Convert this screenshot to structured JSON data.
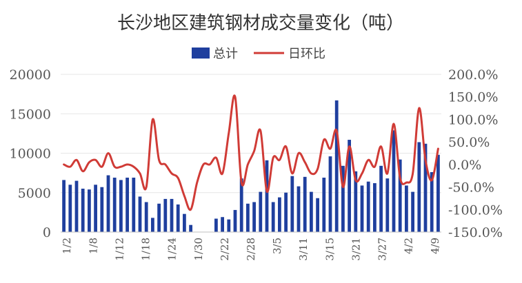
{
  "chart_data": {
    "type": "bar",
    "title": "长沙地区建筑钢材成交量变化（吨）",
    "legend": {
      "position": "top-center"
    },
    "colors": {
      "bar": "#1f3f9e",
      "line": "#d03b36",
      "line_highlight": "#e07a2e"
    },
    "grid": true,
    "xtick_labels": [
      "1/2",
      "1/8",
      "1/12",
      "1/18",
      "1/24",
      "1/30",
      "2/22",
      "2/28",
      "3/5",
      "3/11",
      "3/15",
      "3/21",
      "3/27",
      "4/2",
      "4/9"
    ],
    "y_left": {
      "ticks": [
        "0",
        "5000",
        "10000",
        "15000",
        "20000"
      ],
      "ylim": [
        0,
        20000
      ]
    },
    "y_right": {
      "ticks": [
        "-150.0%",
        "-100.0%",
        "-50.0%",
        "0.0%",
        "50.0%",
        "100.0%",
        "150.0%",
        "200.0%"
      ],
      "ylim": [
        -150,
        200
      ]
    },
    "series": [
      {
        "name": "总计",
        "type": "bar",
        "axis": "left",
        "values": [
          6600,
          6000,
          6500,
          5500,
          5400,
          6000,
          5700,
          7200,
          6900,
          6600,
          6900,
          6900,
          4500,
          3800,
          1800,
          3600,
          4200,
          4200,
          3500,
          2300,
          900,
          0,
          0,
          0,
          1700,
          1900,
          1600,
          2800,
          6800,
          3600,
          3800,
          5100,
          9100,
          3800,
          4400,
          5000,
          7100,
          5800,
          7000,
          5100,
          4300,
          6900,
          9600,
          16700,
          8400,
          11700,
          7700,
          5900,
          6400,
          6200,
          8400,
          6800,
          12900,
          9200,
          5900,
          5100,
          11400,
          11200,
          7600,
          9800
        ]
      },
      {
        "name": "日环比",
        "type": "line",
        "axis": "right",
        "values": [
          0,
          -5,
          10,
          -15,
          5,
          10,
          -5,
          25,
          -5,
          -5,
          0,
          -5,
          -20,
          -50,
          100,
          10,
          0,
          -20,
          -30,
          -70,
          -100,
          -40,
          0,
          0,
          15,
          -20,
          70,
          150,
          -40,
          0,
          30,
          75,
          -60,
          15,
          10,
          40,
          -20,
          25,
          5,
          -20,
          -10,
          55,
          35,
          75,
          -50,
          40,
          -35,
          -20,
          10,
          -5,
          40,
          -20,
          90,
          -30,
          -40,
          -20,
          125,
          10,
          -35,
          35
        ]
      }
    ]
  }
}
